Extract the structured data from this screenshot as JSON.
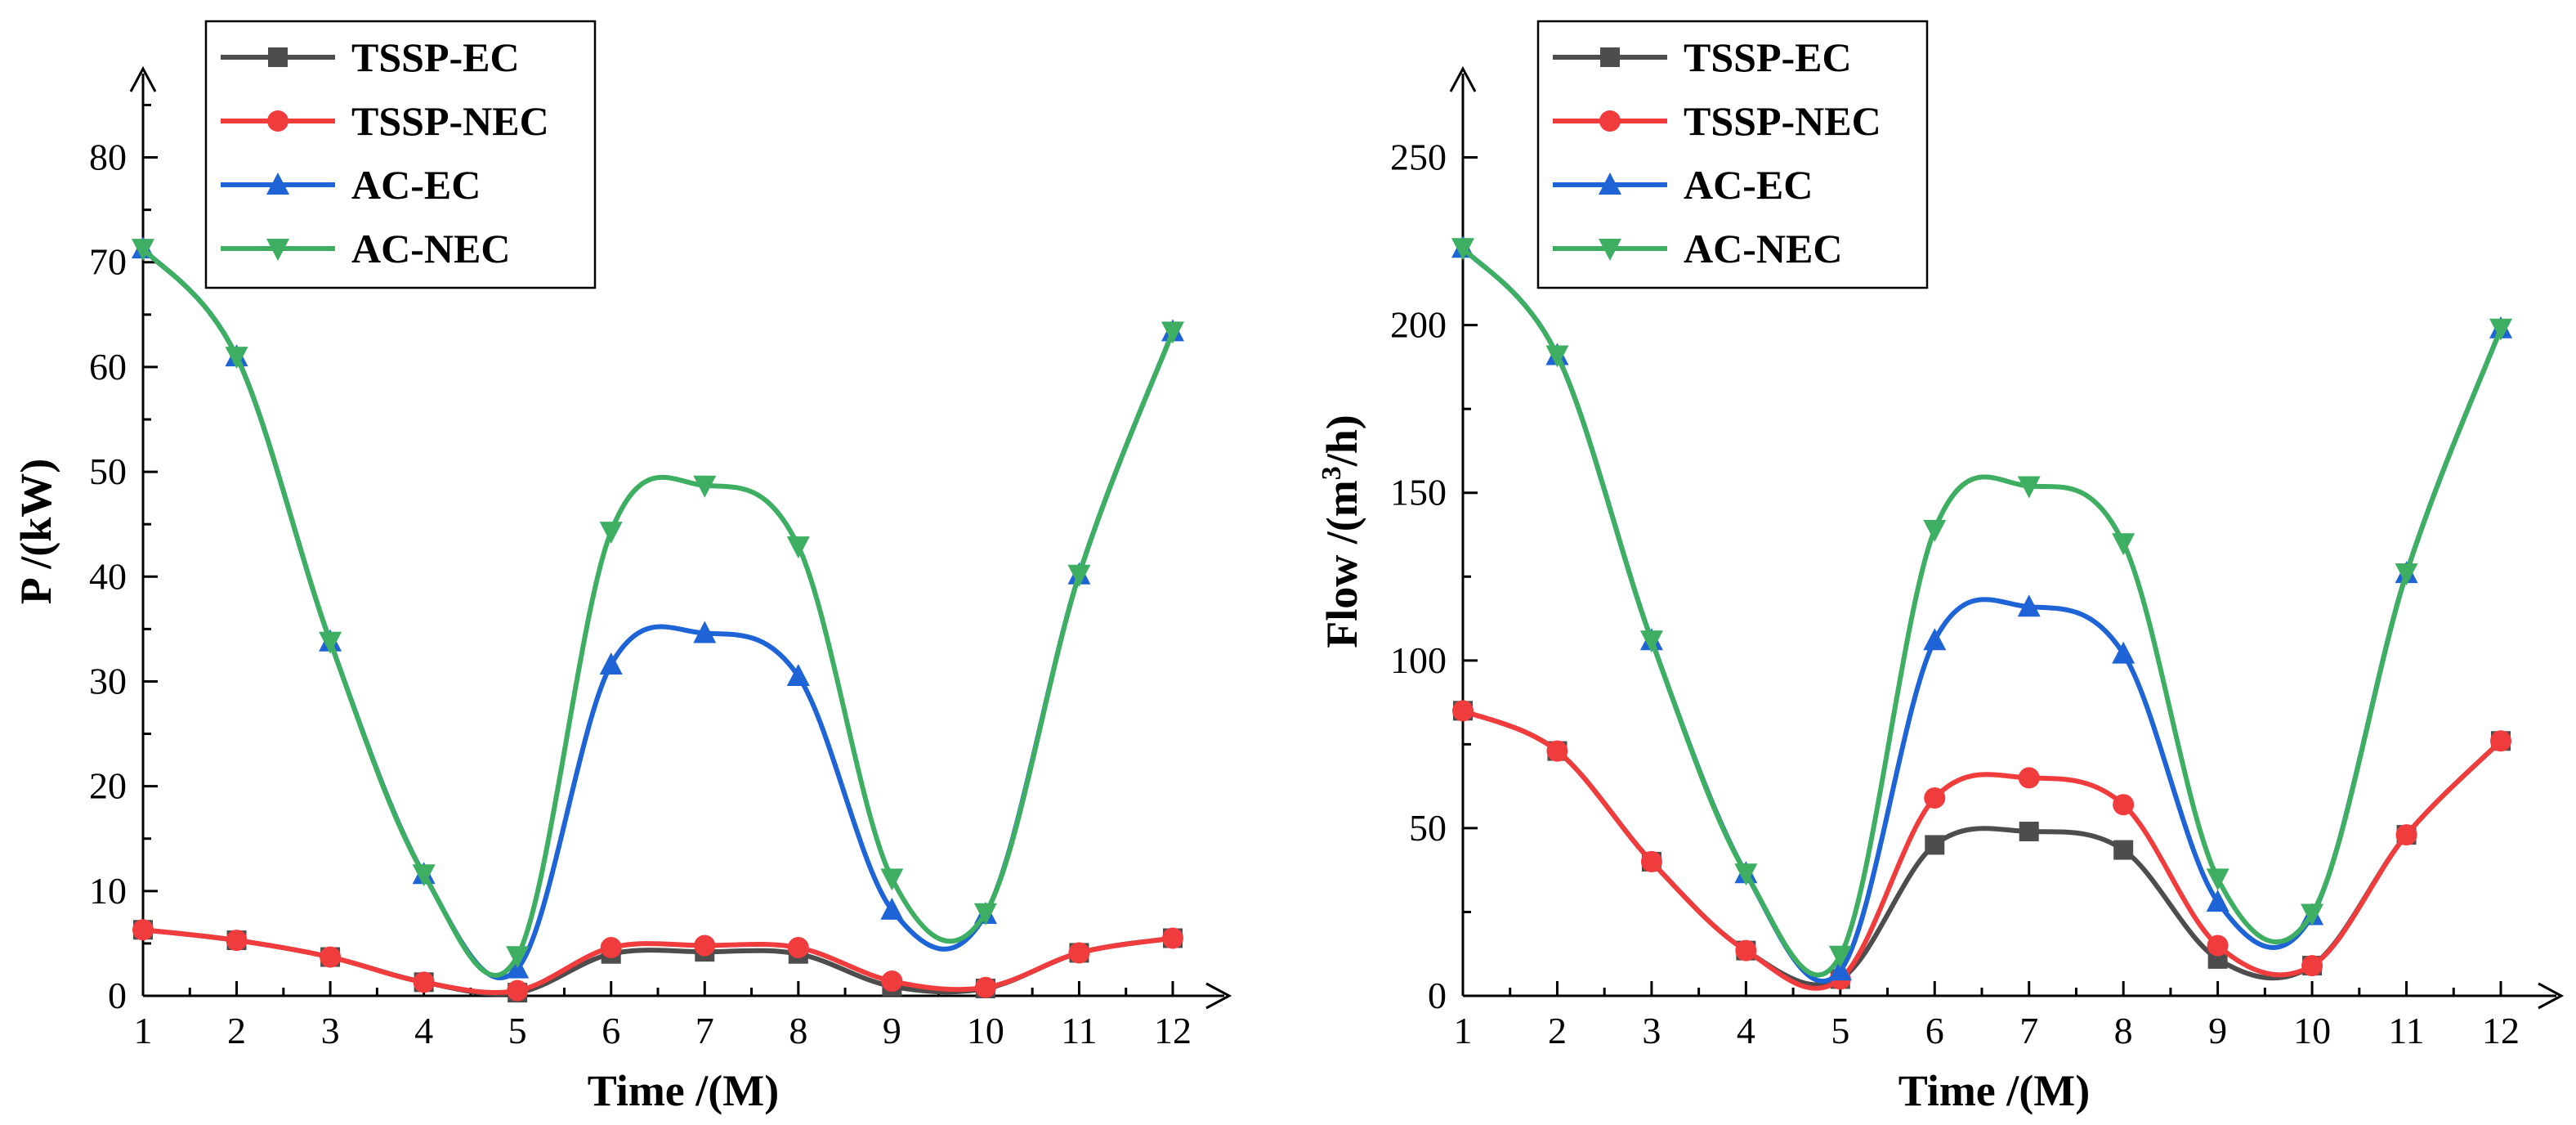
{
  "chart_data": [
    {
      "type": "line",
      "xlabel": "Time /(M)",
      "ylabel": "P /(kW)",
      "xlim": [
        1,
        12
      ],
      "ylim": [
        0,
        88
      ],
      "x": [
        1,
        2,
        3,
        4,
        5,
        6,
        7,
        8,
        9,
        10,
        11,
        12
      ],
      "xticks": [
        "1",
        "2",
        "3",
        "4",
        "5",
        "6",
        "7",
        "8",
        "9",
        "10",
        "11",
        "12"
      ],
      "yticks": [
        "0",
        "10",
        "20",
        "30",
        "40",
        "50",
        "60",
        "70",
        "80"
      ],
      "legend_position": "top-left",
      "series": [
        {
          "name": "TSSP-EC",
          "marker": "square",
          "color": "#4d4d4d",
          "values": [
            6.3,
            5.3,
            3.7,
            1.3,
            0.3,
            4.0,
            4.2,
            4.0,
            0.9,
            0.7,
            4.1,
            5.5
          ]
        },
        {
          "name": "TSSP-NEC",
          "marker": "circle",
          "color": "#f03c3c",
          "values": [
            6.3,
            5.3,
            3.7,
            1.3,
            0.5,
            4.6,
            4.8,
            4.6,
            1.4,
            0.8,
            4.1,
            5.5
          ]
        },
        {
          "name": "AC-EC",
          "marker": "triangle-up",
          "color": "#1f64d6",
          "values": [
            71.3,
            61.0,
            33.8,
            11.6,
            2.6,
            31.6,
            34.6,
            30.5,
            8.2,
            7.8,
            40.2,
            63.4
          ]
        },
        {
          "name": "AC-NEC",
          "marker": "triangle-down",
          "color": "#3dae62",
          "values": [
            71.3,
            61.0,
            33.8,
            11.6,
            3.8,
            44.3,
            48.7,
            42.9,
            11.2,
            7.9,
            40.2,
            63.4
          ]
        }
      ]
    },
    {
      "type": "line",
      "xlabel": "Time /(M)",
      "ylabel_prefix": "Flow /(m",
      "ylabel_sup": "3",
      "ylabel_suffix": "/h)",
      "xlim": [
        1,
        12
      ],
      "ylim": [
        0,
        275
      ],
      "x": [
        1,
        2,
        3,
        4,
        5,
        6,
        7,
        8,
        9,
        10,
        11,
        12
      ],
      "xticks": [
        "1",
        "2",
        "3",
        "4",
        "5",
        "6",
        "7",
        "8",
        "9",
        "10",
        "11",
        "12"
      ],
      "yticks": [
        "0",
        "50",
        "100",
        "150",
        "200",
        "250"
      ],
      "legend_position": "top-left",
      "series": [
        {
          "name": "TSSP-EC",
          "marker": "square",
          "color": "#4d4d4d",
          "values": [
            85,
            73,
            40,
            13.5,
            5,
            45,
            49,
            43.5,
            11,
            9,
            48,
            76
          ]
        },
        {
          "name": "TSSP-NEC",
          "marker": "circle",
          "color": "#f03c3c",
          "values": [
            85,
            73,
            40,
            13.5,
            5,
            59,
            65,
            57,
            15,
            9,
            48,
            76
          ]
        },
        {
          "name": "AC-EC",
          "marker": "triangle-up",
          "color": "#1f64d6",
          "values": [
            223,
            191,
            106,
            36.5,
            7.5,
            106,
            116,
            102,
            28,
            24,
            126,
            199
          ]
        },
        {
          "name": "AC-NEC",
          "marker": "triangle-down",
          "color": "#3dae62",
          "values": [
            223,
            191,
            106,
            36.5,
            12,
            139,
            152,
            135,
            35,
            24.5,
            126,
            199
          ]
        }
      ]
    }
  ]
}
